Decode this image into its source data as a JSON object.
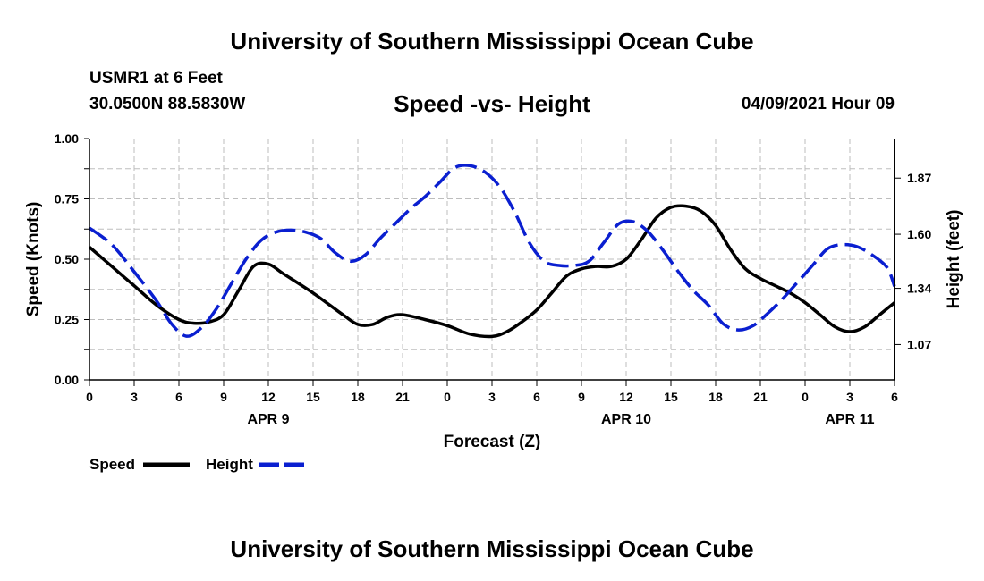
{
  "header": {
    "title_top": "University of Southern Mississippi Ocean Cube",
    "title_bottom": "University of Southern Mississippi Ocean Cube",
    "station": "USMR1 at 6 Feet",
    "coords": "30.0500N  88.5830W",
    "chart_title": "Speed -vs- Height",
    "datetime": "04/09/2021 Hour 09"
  },
  "legend": {
    "speed_label": "Speed",
    "height_label": "Height"
  },
  "colors": {
    "speed": "#000000",
    "height": "#0a1fd0",
    "grid": "#bdbdbd"
  },
  "chart_data": {
    "type": "line",
    "title": "Speed -vs- Height",
    "xlabel": "Forecast (Z)",
    "ylabel": "Speed (Knots)",
    "y2label": "Height (feet)",
    "xlim": [
      0,
      54
    ],
    "ylim": [
      0,
      1
    ],
    "y2lim": [
      0.9,
      2.06
    ],
    "x_ticks": [
      0,
      3,
      6,
      9,
      12,
      15,
      18,
      21,
      24,
      27,
      30,
      33,
      36,
      39,
      42,
      45,
      48,
      51,
      54
    ],
    "x_tick_labels": [
      "0",
      "3",
      "6",
      "9",
      "12",
      "15",
      "18",
      "21",
      "0",
      "3",
      "6",
      "9",
      "12",
      "15",
      "18",
      "21",
      "0",
      "3",
      "6"
    ],
    "day_labels": [
      {
        "x": 12,
        "text": "APR 9"
      },
      {
        "x": 36,
        "text": "APR 10"
      },
      {
        "x": 51,
        "text": "APR 11"
      }
    ],
    "y_ticks": [
      0,
      0.25,
      0.5,
      0.75,
      1
    ],
    "y_tick_labels": [
      "0.00",
      "0.25",
      "0.50",
      "0.75",
      "1.00"
    ],
    "y2_ticks": [
      1.07,
      1.34,
      1.6,
      1.87
    ],
    "y2_tick_labels": [
      "1.07",
      "1.34",
      "1.60",
      "1.87"
    ],
    "grid": true,
    "legend_position": "bottom-left",
    "series": [
      {
        "name": "Speed",
        "axis": "left",
        "x": [
          0,
          1.5,
          3,
          4.5,
          6,
          7,
          8,
          9,
          10,
          11,
          12,
          13,
          15,
          17,
          18,
          19,
          20,
          21,
          22.5,
          24,
          25.5,
          27,
          28,
          29,
          30,
          31,
          32,
          33,
          34,
          35,
          36,
          37,
          38,
          39,
          40,
          41,
          42,
          43,
          44,
          45,
          46,
          47,
          48,
          49,
          50,
          51,
          52,
          53,
          54
        ],
        "values": [
          0.55,
          0.47,
          0.39,
          0.31,
          0.25,
          0.235,
          0.24,
          0.27,
          0.37,
          0.47,
          0.48,
          0.44,
          0.36,
          0.27,
          0.23,
          0.23,
          0.26,
          0.27,
          0.25,
          0.225,
          0.19,
          0.18,
          0.2,
          0.24,
          0.29,
          0.36,
          0.43,
          0.46,
          0.47,
          0.47,
          0.5,
          0.58,
          0.67,
          0.715,
          0.72,
          0.7,
          0.64,
          0.54,
          0.46,
          0.42,
          0.39,
          0.36,
          0.32,
          0.27,
          0.22,
          0.2,
          0.22,
          0.27,
          0.32
        ]
      },
      {
        "name": "Height",
        "axis": "right",
        "x": [
          0,
          1.5,
          3,
          4.5,
          5.5,
          6.5,
          7.5,
          8.5,
          9.5,
          10.5,
          11.5,
          12.5,
          13.5,
          14.5,
          15.5,
          16.5,
          17.5,
          18.5,
          19.5,
          20.5,
          21.5,
          22.5,
          23.5,
          24.5,
          25.5,
          26.5,
          27.5,
          28.5,
          29.5,
          30.5,
          31.5,
          32.5,
          33.5,
          34.5,
          35.5,
          36.5,
          37.5,
          38.5,
          39.5,
          40.5,
          41.5,
          42.5,
          43.5,
          44.5,
          45.5,
          46.5,
          47.5,
          48.5,
          49.5,
          50.5,
          51.5,
          52.5,
          53.5,
          54
        ],
        "values": [
          1.63,
          1.55,
          1.42,
          1.28,
          1.17,
          1.11,
          1.15,
          1.24,
          1.36,
          1.48,
          1.57,
          1.61,
          1.62,
          1.61,
          1.58,
          1.51,
          1.47,
          1.5,
          1.58,
          1.65,
          1.72,
          1.78,
          1.85,
          1.92,
          1.93,
          1.9,
          1.83,
          1.71,
          1.56,
          1.47,
          1.45,
          1.45,
          1.47,
          1.56,
          1.65,
          1.66,
          1.61,
          1.52,
          1.42,
          1.33,
          1.26,
          1.17,
          1.14,
          1.16,
          1.22,
          1.29,
          1.37,
          1.45,
          1.53,
          1.55,
          1.54,
          1.5,
          1.44,
          1.35
        ]
      }
    ]
  }
}
